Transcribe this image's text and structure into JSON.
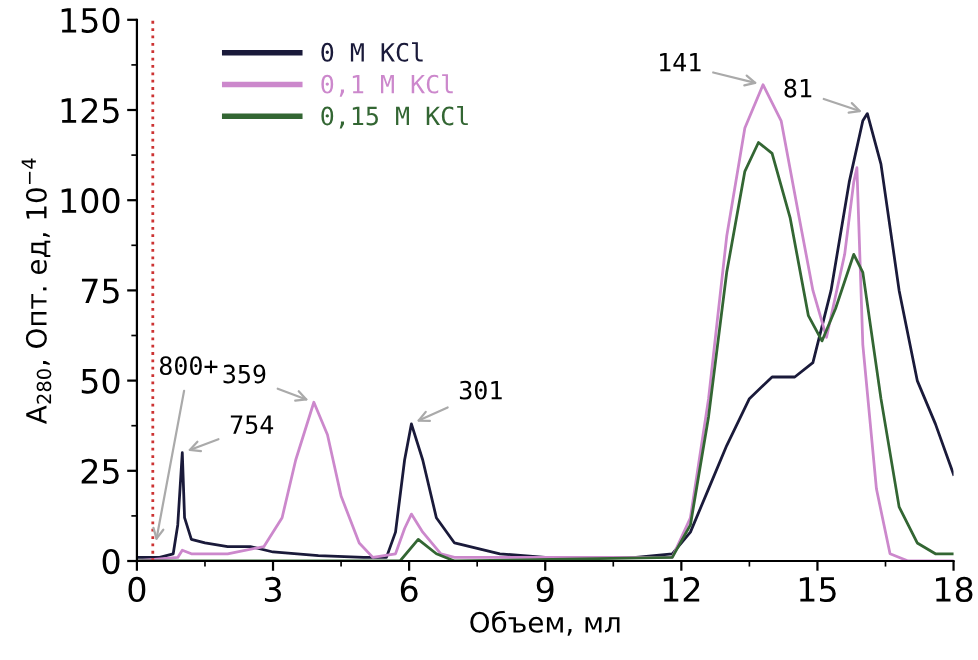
{
  "chart_data": {
    "type": "line",
    "xlabel": "Объем, мл",
    "ylabel": "A$_{280}$, Опт. ед, 10$^{−4}$",
    "xlim": [
      0,
      18
    ],
    "xticks": [
      0,
      3,
      6,
      9,
      12,
      15,
      18
    ],
    "ylim": [
      0,
      150
    ],
    "yticks": [
      0,
      25,
      50,
      75,
      100,
      125,
      150
    ],
    "grid": false,
    "legend": "top left",
    "marker": "none",
    "line_style": "solid",
    "series": [
      {
        "name": "0 M KCl",
        "color": "#1a1a3a",
        "x": [
          0,
          0.5,
          0.8,
          0.9,
          1.0,
          1.05,
          1.2,
          1.5,
          2.0,
          2.5,
          3.0,
          4,
          5,
          5.5,
          5.7,
          5.9,
          6.05,
          6.3,
          6.6,
          7,
          8,
          9,
          11,
          11.8,
          12.2,
          12.6,
          13.0,
          13.5,
          14,
          14.5,
          14.9,
          15.3,
          15.7,
          16.0,
          16.1,
          16.4,
          16.8,
          17.2,
          17.6,
          18
        ],
        "values": [
          1,
          1,
          2,
          10,
          30,
          12,
          6,
          5,
          4,
          4,
          2.5,
          1.5,
          1,
          1,
          8,
          28,
          38,
          28,
          12,
          5,
          2,
          1,
          1,
          2,
          8,
          20,
          32,
          45,
          51,
          51,
          55,
          75,
          105,
          122,
          124,
          110,
          75,
          50,
          38,
          24
        ]
      },
      {
        "name": "0,1 M KCl",
        "color": "#cc88cc",
        "x": [
          0,
          0.9,
          1.0,
          1.2,
          2,
          2.8,
          3.2,
          3.5,
          3.9,
          4.2,
          4.5,
          4.9,
          5.2,
          5.7,
          5.9,
          6.05,
          6.3,
          6.7,
          7,
          11.8,
          12.2,
          12.6,
          13.0,
          13.4,
          13.8,
          14.2,
          14.6,
          14.9,
          15.2,
          15.6,
          15.8,
          15.87,
          16.0,
          16.3,
          16.6,
          17,
          18
        ],
        "values": [
          0,
          1,
          3,
          2,
          2,
          4,
          12,
          28,
          44,
          35,
          18,
          5,
          1,
          2,
          9,
          13,
          8,
          2,
          1,
          1,
          12,
          45,
          90,
          120,
          132,
          122,
          95,
          75,
          62,
          85,
          105,
          109,
          60,
          20,
          2,
          0,
          0
        ]
      },
      {
        "name": "0,15 M KCl",
        "color": "#336633",
        "x": [
          0,
          5.8,
          6.2,
          6.6,
          7,
          11.8,
          12.2,
          12.6,
          13.0,
          13.4,
          13.7,
          14.0,
          14.4,
          14.8,
          15.1,
          15.4,
          15.8,
          16.0,
          16.4,
          16.8,
          17.2,
          17.6,
          18
        ],
        "values": [
          0,
          0,
          6,
          2,
          0,
          1,
          10,
          40,
          80,
          108,
          116,
          113,
          95,
          68,
          61,
          70,
          85,
          80,
          45,
          15,
          5,
          2,
          2
        ]
      }
    ],
    "ref_lines": [
      {
        "axis": "x",
        "value": 0.35,
        "color": "#cc3333",
        "line_style": "dotted"
      }
    ],
    "annotations": [
      {
        "text": "800+",
        "x": 0.4,
        "y": 4
      },
      {
        "text": "754",
        "x": 1.0,
        "y": 30
      },
      {
        "text": "359",
        "x": 3.9,
        "y": 44
      },
      {
        "text": "301",
        "x": 6.05,
        "y": 38
      },
      {
        "text": "141",
        "x": 13.8,
        "y": 132
      },
      {
        "text": "81",
        "x": 16.1,
        "y": 124
      }
    ]
  }
}
